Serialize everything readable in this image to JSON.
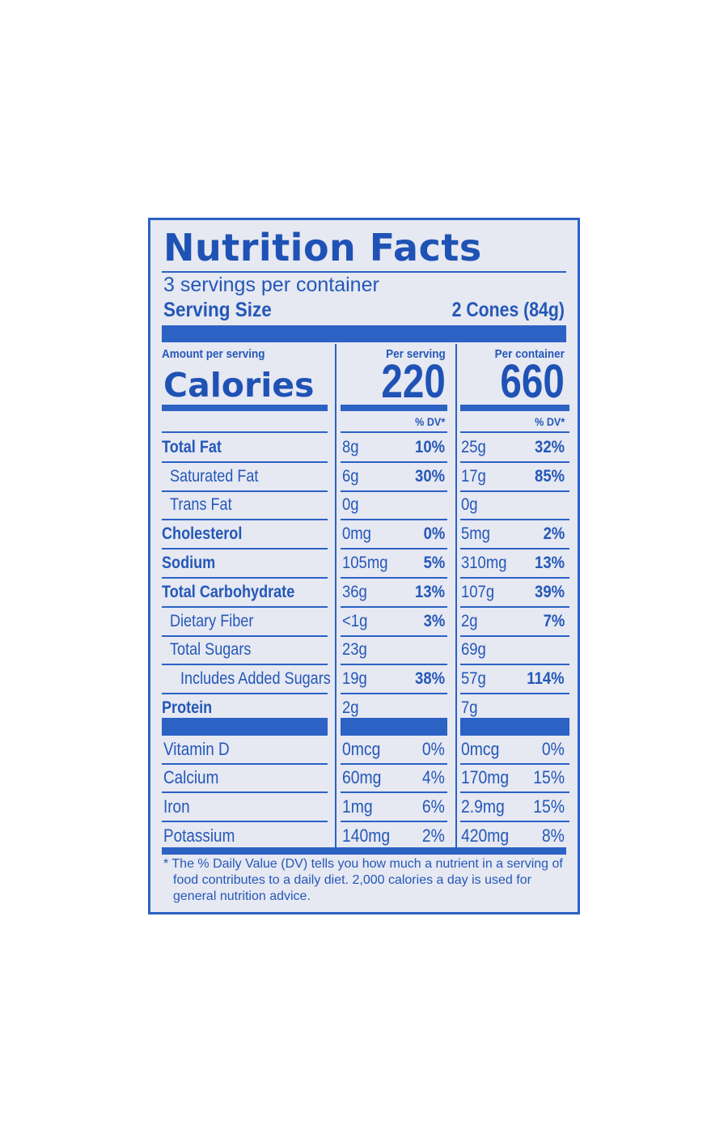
{
  "panel": {
    "title": "Nutrition Facts",
    "servings_per_container": "3 servings per container",
    "serving_size_label": "Serving Size",
    "serving_size_value": "2 Cones (84g)",
    "amount_per_serving": "Amount per serving",
    "per_serving_header": "Per serving",
    "per_container_header": "Per container",
    "calories_label": "Calories",
    "calories_per_serving": "220",
    "calories_per_container": "660",
    "dv_header": "% DV*"
  },
  "nutrients": [
    {
      "name": "Total Fat",
      "serving": "8g",
      "serving_dv": "10%",
      "container": "25g",
      "container_dv": "32%"
    },
    {
      "name": "Saturated Fat",
      "serving": "6g",
      "serving_dv": "30%",
      "container": "17g",
      "container_dv": "85%"
    },
    {
      "name": "Trans Fat",
      "serving": "0g",
      "serving_dv": "",
      "container": "0g",
      "container_dv": ""
    },
    {
      "name": "Cholesterol",
      "serving": "0mg",
      "serving_dv": "0%",
      "container": "5mg",
      "container_dv": "2%"
    },
    {
      "name": "Sodium",
      "serving": "105mg",
      "serving_dv": "5%",
      "container": "310mg",
      "container_dv": "13%"
    },
    {
      "name": "Total Carbohydrate",
      "serving": "36g",
      "serving_dv": "13%",
      "container": "107g",
      "container_dv": "39%"
    },
    {
      "name": "Dietary Fiber",
      "serving": "<1g",
      "serving_dv": "3%",
      "container": "2g",
      "container_dv": "7%"
    },
    {
      "name": "Total Sugars",
      "serving": "23g",
      "serving_dv": "",
      "container": "69g",
      "container_dv": ""
    },
    {
      "name": "Includes Added Sugars",
      "serving": "19g",
      "serving_dv": "38%",
      "container": "57g",
      "container_dv": "114%"
    },
    {
      "name": "Protein",
      "serving": "2g",
      "serving_dv": "",
      "container": "7g",
      "container_dv": ""
    }
  ],
  "vitamins": [
    {
      "name": "Vitamin D",
      "serving": "0mcg",
      "serving_dv": "0%",
      "container": "0mcg",
      "container_dv": "0%"
    },
    {
      "name": "Calcium",
      "serving": "60mg",
      "serving_dv": "4%",
      "container": "170mg",
      "container_dv": "15%"
    },
    {
      "name": "Iron",
      "serving": "1mg",
      "serving_dv": "6%",
      "container": "2.9mg",
      "container_dv": "15%"
    },
    {
      "name": "Potassium",
      "serving": "140mg",
      "serving_dv": "2%",
      "container": "420mg",
      "container_dv": "8%"
    }
  ],
  "footnote": {
    "mark": "*",
    "text": "The % Daily Value (DV) tells you how much a nutrient in a serving of food contributes to a daily diet. 2,000 calories a day is used for general nutrition advice."
  },
  "colors": {
    "ink": "#2458b8",
    "rule": "#2b62c4",
    "background": "#e6e8f2"
  }
}
